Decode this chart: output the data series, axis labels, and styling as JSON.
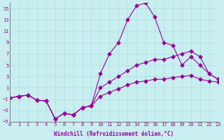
{
  "xlabel": "Windchill (Refroidissement éolien,°C)",
  "background_color": "#c8eef0",
  "grid_color": "#aadddd",
  "line_color": "#990099",
  "xlim": [
    0,
    23
  ],
  "ylim": [
    -5,
    16
  ],
  "yticks": [
    -5,
    -3,
    -1,
    1,
    3,
    5,
    7,
    9,
    11,
    13,
    15
  ],
  "xticks": [
    0,
    1,
    2,
    3,
    4,
    5,
    6,
    7,
    8,
    9,
    10,
    11,
    12,
    13,
    14,
    15,
    16,
    17,
    18,
    19,
    20,
    21,
    22,
    23
  ],
  "line1_x": [
    0,
    1,
    2,
    3,
    4,
    5,
    6,
    7,
    8,
    9,
    10,
    11,
    12,
    13,
    14,
    15,
    16,
    17,
    18,
    19,
    20,
    21,
    22,
    23
  ],
  "line1_y": [
    -0.8,
    -0.5,
    -0.3,
    -1.2,
    -1.3,
    -4.5,
    -3.5,
    -3.8,
    -2.5,
    -2.2,
    3.5,
    7.0,
    9.0,
    13.0,
    15.5,
    16.0,
    13.5,
    9.0,
    8.5,
    5.0,
    6.5,
    5.0,
    3.5,
    2.5
  ],
  "line2_x": [
    0,
    1,
    2,
    3,
    4,
    5,
    6,
    7,
    8,
    9,
    10,
    11,
    12,
    13,
    14,
    15,
    16,
    17,
    18,
    19,
    20,
    21,
    22,
    23
  ],
  "line2_y": [
    -0.8,
    -0.5,
    -0.3,
    -1.2,
    -1.3,
    -4.5,
    -3.5,
    -3.8,
    -2.5,
    -2.2,
    1.0,
    2.0,
    3.0,
    4.0,
    5.0,
    5.5,
    6.0,
    6.0,
    6.5,
    7.0,
    7.5,
    6.5,
    3.5,
    2.5
  ],
  "line3_x": [
    0,
    1,
    2,
    3,
    4,
    5,
    6,
    7,
    8,
    9,
    10,
    11,
    12,
    13,
    14,
    15,
    16,
    17,
    18,
    19,
    20,
    21,
    22,
    23
  ],
  "line3_y": [
    -0.8,
    -0.5,
    -0.3,
    -1.2,
    -1.3,
    -4.5,
    -3.5,
    -3.8,
    -2.5,
    -2.2,
    -0.5,
    0.2,
    0.8,
    1.5,
    2.0,
    2.2,
    2.5,
    2.5,
    2.8,
    3.0,
    3.2,
    2.5,
    2.2,
    2.0
  ]
}
